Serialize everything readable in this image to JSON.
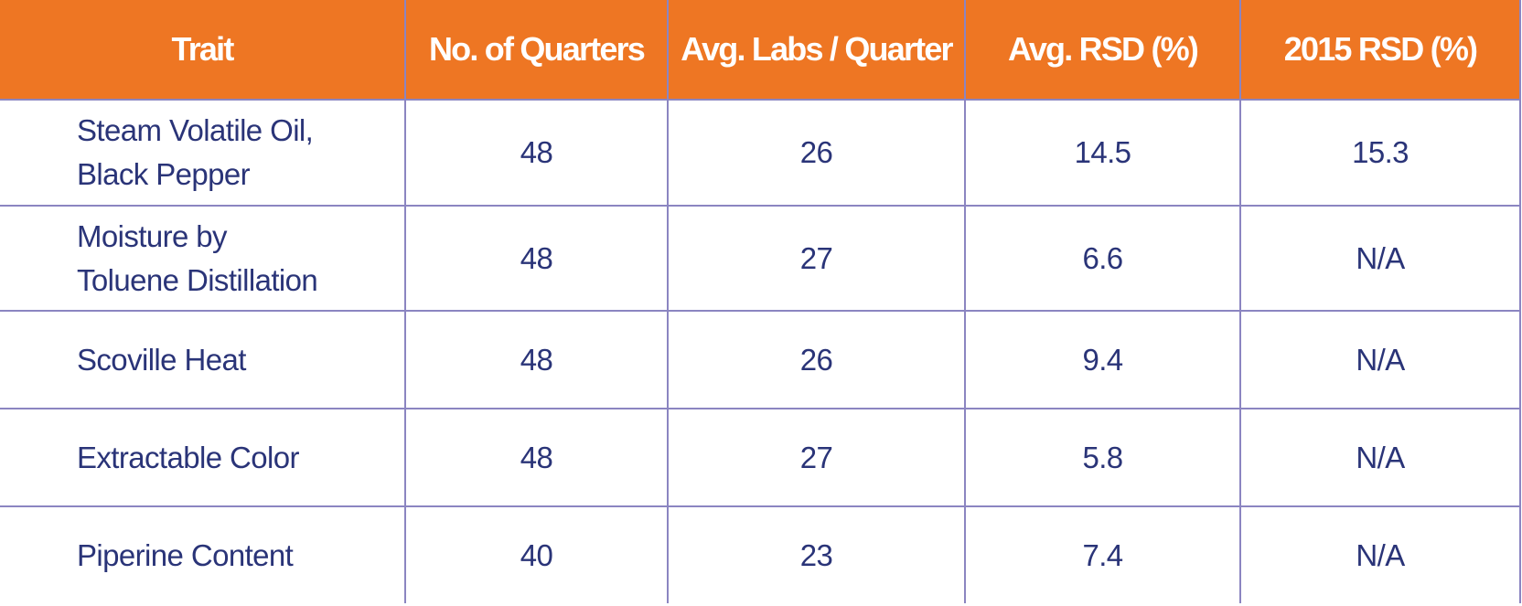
{
  "table": {
    "headers": [
      "Trait",
      "No. of Quarters",
      "Avg. Labs / Quarter",
      "Avg. RSD (%)",
      "2015 RSD (%)"
    ],
    "rows": [
      {
        "trait_lines": [
          "Steam Volatile Oil,",
          "Black Pepper"
        ],
        "quarters": "48",
        "labs": "26",
        "avg_rsd": "14.5",
        "rsd_2015": "15.3"
      },
      {
        "trait_lines": [
          "Moisture by",
          "Toluene Distillation"
        ],
        "quarters": "48",
        "labs": "27",
        "avg_rsd": "6.6",
        "rsd_2015": "N/A"
      },
      {
        "trait_lines": [
          "Scoville Heat"
        ],
        "quarters": "48",
        "labs": "26",
        "avg_rsd": "9.4",
        "rsd_2015": "N/A"
      },
      {
        "trait_lines": [
          "Extractable Color"
        ],
        "quarters": "48",
        "labs": "27",
        "avg_rsd": "5.8",
        "rsd_2015": "N/A"
      },
      {
        "trait_lines": [
          "Piperine Content"
        ],
        "quarters": "40",
        "labs": "23",
        "avg_rsd": "7.4",
        "rsd_2015": "N/A"
      }
    ]
  },
  "colors": {
    "header_background": "#ee7623",
    "header_text": "#ffffff",
    "body_text": "#2a3478",
    "grid_line": "#8b85c1"
  }
}
